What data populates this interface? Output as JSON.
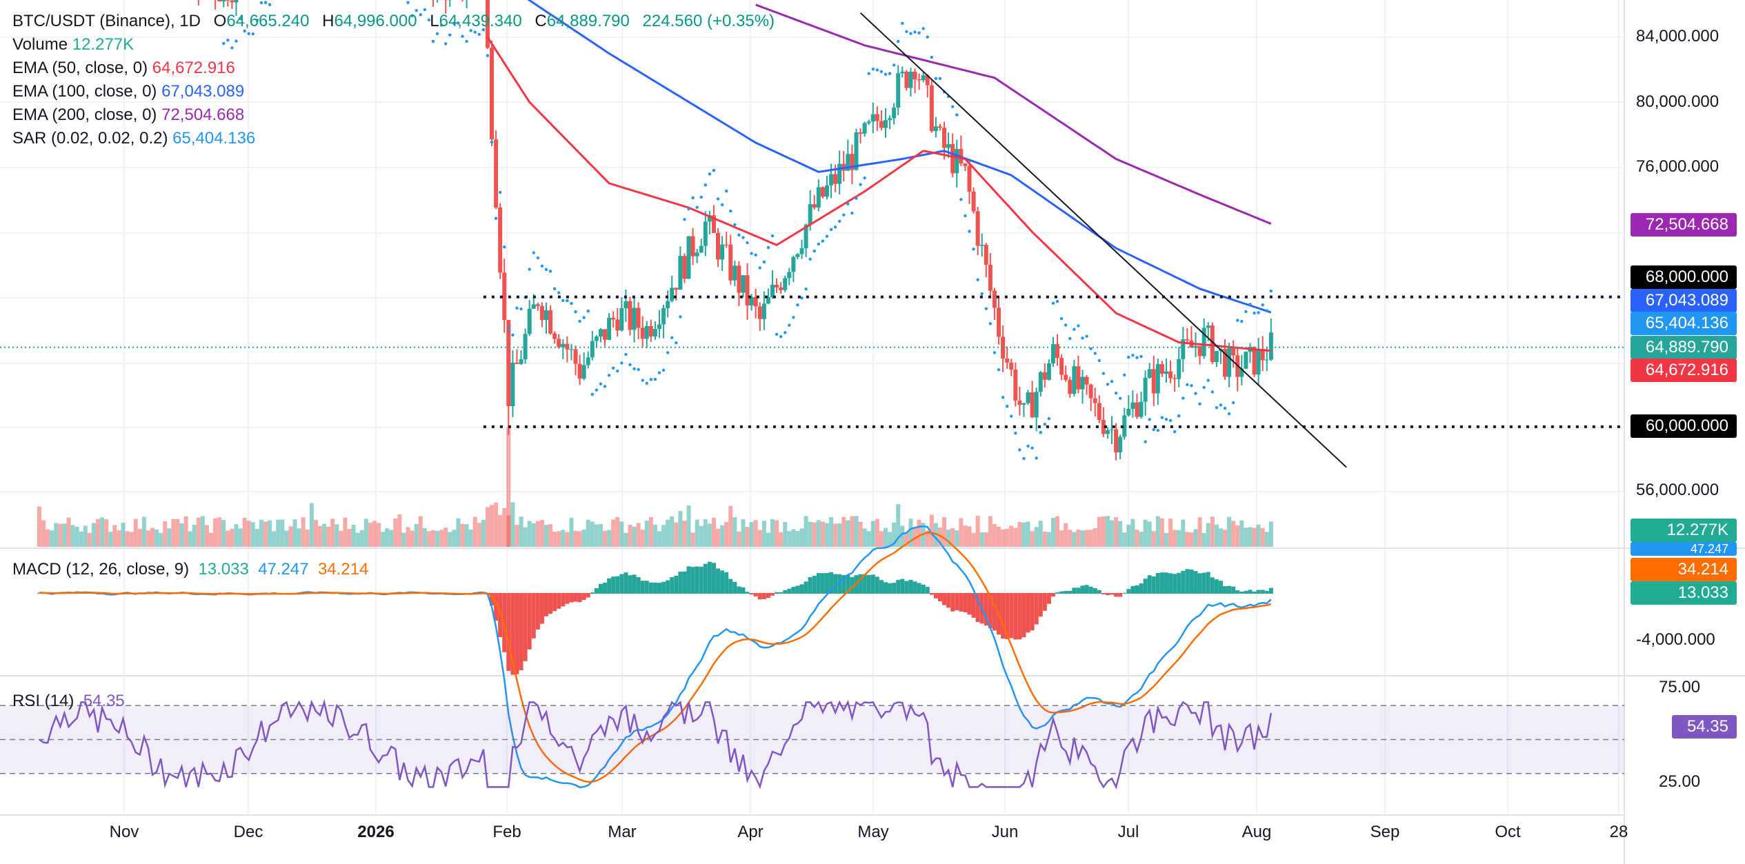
{
  "legend": {
    "symbol": "BTC/USDT (Binance), 1D",
    "o_label": "O",
    "o_val": "64,665.240",
    "h_label": "H",
    "h_val": "64,996.000",
    "l_label": "L",
    "l_val": "64,439.340",
    "c_label": "C",
    "c_val": "64,889.790",
    "chg": "224.560 (+0.35%)",
    "volume_label": "Volume",
    "volume_val": "12.277K",
    "ema50_label": "EMA (50, close, 0)",
    "ema50_val": "64,672.916",
    "ema100_label": "EMA (100, close, 0)",
    "ema100_val": "67,043.089",
    "ema200_label": "EMA (200, close, 0)",
    "ema200_val": "72,504.668",
    "sar_label": "SAR (0.02, 0.02, 0.2)",
    "sar_val": "65,404.136"
  },
  "macd_legend": {
    "label": "MACD (12, 26, close, 9)",
    "hist": "13.033",
    "macd": "47.247",
    "signal": "34.214"
  },
  "rsi_legend": {
    "label": "RSI (14)",
    "value": "54.35"
  },
  "price_axis": [
    "84,000.000",
    "80,000.000",
    "76,000.000",
    "56,000.000"
  ],
  "macd_axis": [
    "-4,000.000"
  ],
  "rsi_axis": [
    "75.00",
    "25.00"
  ],
  "price_tags": {
    "ema200": "72,504.668",
    "level68": "68,000.000",
    "ema100": "67,043.089",
    "sar": "65,404.136",
    "close": "64,889.790",
    "ema50": "64,672.916",
    "level60": "60,000.000",
    "volume": "12.277K",
    "macd_partial": "47.247",
    "macd_signal": "34.214",
    "macd_hist": "13.033",
    "rsi": "54.35"
  },
  "time_axis": [
    "Nov",
    "Dec",
    "2026",
    "Feb",
    "Mar",
    "Apr",
    "May",
    "Jun",
    "Jul",
    "Aug",
    "Sep",
    "Oct",
    "28"
  ],
  "colors": {
    "up": "#26a69a",
    "down": "#ef5350",
    "ema50": "#f23645",
    "ema100": "#2962ff",
    "ema200": "#9c27b0",
    "sar": "#2196f3",
    "macd": "#2196f3",
    "signal": "#ff6d00",
    "rsi": "#7e57c2"
  },
  "chart_data": {
    "type": "candlestick",
    "title": "BTC/USDT (Binance), 1D",
    "y_range": [
      54000,
      86000
    ],
    "x_range": [
      "2025-10-16",
      "2026-10-28"
    ],
    "horizontal_levels": [
      68000,
      60000
    ],
    "trendline": [
      {
        "date": "2026-04-30",
        "price": 85500
      },
      {
        "date": "2026-08-24",
        "price": 57500
      }
    ],
    "price_path": [
      {
        "date": "2026-01-31",
        "price": 83000
      },
      {
        "date": "2026-02-05",
        "price": 62000
      },
      {
        "date": "2026-02-12",
        "price": 68000
      },
      {
        "date": "2026-02-22",
        "price": 63500
      },
      {
        "date": "2026-03-03",
        "price": 67000
      },
      {
        "date": "2026-03-10",
        "price": 66000
      },
      {
        "date": "2026-03-24",
        "price": 72500
      },
      {
        "date": "2026-04-06",
        "price": 66500
      },
      {
        "date": "2026-04-19",
        "price": 73500
      },
      {
        "date": "2026-05-03",
        "price": 78500
      },
      {
        "date": "2026-05-13",
        "price": 82500
      },
      {
        "date": "2026-05-19",
        "price": 77500
      },
      {
        "date": "2026-05-25",
        "price": 75500
      },
      {
        "date": "2026-06-02",
        "price": 66000
      },
      {
        "date": "2026-06-08",
        "price": 60500
      },
      {
        "date": "2026-06-15",
        "price": 64500
      },
      {
        "date": "2026-06-22",
        "price": 62000
      },
      {
        "date": "2026-06-30",
        "price": 59500
      },
      {
        "date": "2026-07-07",
        "price": 62500
      },
      {
        "date": "2026-07-14",
        "price": 64000
      },
      {
        "date": "2026-07-21",
        "price": 65500
      },
      {
        "date": "2026-07-28",
        "price": 63500
      },
      {
        "date": "2026-08-03",
        "price": 64200
      },
      {
        "date": "2026-08-06",
        "price": 64890
      }
    ],
    "ema50": [
      {
        "date": "2026-01-31",
        "price": 84000
      },
      {
        "date": "2026-02-10",
        "price": 80000
      },
      {
        "date": "2026-03-01",
        "price": 75000
      },
      {
        "date": "2026-03-20",
        "price": 73500
      },
      {
        "date": "2026-04-10",
        "price": 71200
      },
      {
        "date": "2026-05-01",
        "price": 74500
      },
      {
        "date": "2026-05-15",
        "price": 77000
      },
      {
        "date": "2026-05-25",
        "price": 76500
      },
      {
        "date": "2026-06-10",
        "price": 72000
      },
      {
        "date": "2026-06-30",
        "price": 67000
      },
      {
        "date": "2026-07-15",
        "price": 65200
      },
      {
        "date": "2026-08-06",
        "price": 64673
      }
    ],
    "ema100": [
      {
        "date": "2026-01-31",
        "price": 88000
      },
      {
        "date": "2026-03-01",
        "price": 83000
      },
      {
        "date": "2026-04-05",
        "price": 77500
      },
      {
        "date": "2026-04-20",
        "price": 75700
      },
      {
        "date": "2026-05-10",
        "price": 76500
      },
      {
        "date": "2026-05-20",
        "price": 77000
      },
      {
        "date": "2026-06-05",
        "price": 75500
      },
      {
        "date": "2026-06-30",
        "price": 71000
      },
      {
        "date": "2026-07-20",
        "price": 68500
      },
      {
        "date": "2026-08-06",
        "price": 67043
      }
    ],
    "ema200": [
      {
        "date": "2026-04-05",
        "price": 86000
      },
      {
        "date": "2026-05-01",
        "price": 83500
      },
      {
        "date": "2026-06-01",
        "price": 81500
      },
      {
        "date": "2026-06-30",
        "price": 76500
      },
      {
        "date": "2026-07-20",
        "price": 74300
      },
      {
        "date": "2026-08-06",
        "price": 72505
      }
    ],
    "macd": {
      "last_macd": 47.247,
      "last_signal": 34.214,
      "last_hist": 13.033
    },
    "rsi": {
      "last": 54.35,
      "levels": [
        70,
        50,
        30
      ],
      "axis_labels": [
        75,
        25
      ]
    }
  }
}
